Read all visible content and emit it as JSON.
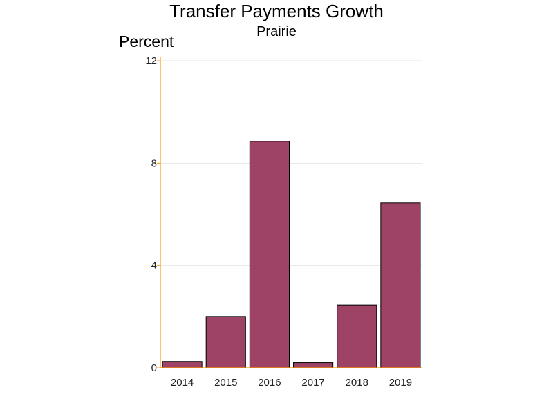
{
  "chart_data": {
    "type": "bar",
    "title": "Transfer Payments Growth",
    "subtitle": "Prairie",
    "ylabel": "Percent",
    "xlabel": "",
    "categories": [
      "2014",
      "2015",
      "2016",
      "2017",
      "2018",
      "2019"
    ],
    "values": [
      0.25,
      2.0,
      8.85,
      0.2,
      2.45,
      6.45
    ],
    "ylim": [
      0,
      12
    ],
    "yticks": [
      0,
      4,
      8,
      12
    ],
    "grid": true,
    "legend": "none",
    "colors": {
      "bar_fill": "#9e4266",
      "bar_stroke": "#000000",
      "axis": "#ff9900",
      "grid": "#e6e6e6"
    }
  }
}
